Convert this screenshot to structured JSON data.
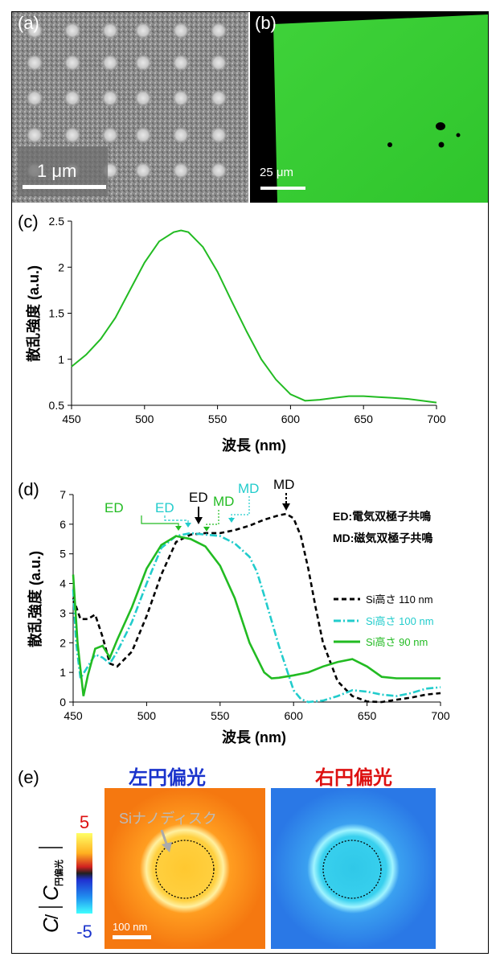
{
  "panels": {
    "a": {
      "label": "(a)",
      "scale": "1 μm"
    },
    "b": {
      "label": "(b)",
      "scale": "25 μm"
    },
    "c": {
      "label": "(c)"
    },
    "d": {
      "label": "(d)"
    },
    "e": {
      "label": "(e)",
      "left_title": "左円偏光",
      "right_title": "右円偏光",
      "disk_label": "Siナノディスク",
      "scale": "100 nm",
      "cbar_max": "5",
      "cbar_min": "-5",
      "cbar_label_c": "C",
      "cbar_label_sub": "円偏光"
    }
  },
  "chart_data": [
    {
      "type": "line",
      "panel": "c",
      "xlabel": "波長 (nm)",
      "ylabel": "散乱強度 (a.u.)",
      "xlim": [
        450,
        700
      ],
      "ylim": [
        0.5,
        2.5
      ],
      "xticks": [
        450,
        500,
        550,
        600,
        650,
        700
      ],
      "yticks": [
        0.5,
        1,
        1.5,
        2,
        2.5
      ],
      "ytick_labels": [
        "0.5",
        "1",
        "1.5",
        "2",
        "2.5"
      ],
      "series": [
        {
          "color": "#22bb22",
          "x": [
            450,
            460,
            470,
            480,
            490,
            500,
            510,
            520,
            525,
            530,
            540,
            550,
            560,
            570,
            580,
            590,
            600,
            610,
            620,
            630,
            640,
            650,
            660,
            670,
            680,
            690,
            700
          ],
          "y": [
            0.92,
            1.05,
            1.22,
            1.45,
            1.75,
            2.05,
            2.28,
            2.38,
            2.4,
            2.38,
            2.22,
            1.95,
            1.62,
            1.3,
            1.0,
            0.78,
            0.62,
            0.55,
            0.56,
            0.58,
            0.6,
            0.6,
            0.59,
            0.58,
            0.57,
            0.55,
            0.53
          ]
        }
      ]
    },
    {
      "type": "line",
      "panel": "d",
      "xlabel": "波長 (nm)",
      "ylabel": "散乱強度 (a.u.)",
      "xlim": [
        450,
        700
      ],
      "ylim": [
        0,
        7
      ],
      "xticks": [
        450,
        500,
        550,
        600,
        650,
        700
      ],
      "yticks": [
        0,
        1,
        2,
        3,
        4,
        5,
        6,
        7
      ],
      "legend_position": "right",
      "annotations_text": [
        "ED:電気双極子共鳴",
        "MD:磁気双極子共鳴"
      ],
      "series": [
        {
          "name": "Si高さ 110 nm",
          "color": "#000000",
          "dash": "6,4",
          "x": [
            450,
            455,
            460,
            465,
            470,
            475,
            480,
            490,
            500,
            510,
            520,
            530,
            540,
            550,
            560,
            570,
            580,
            590,
            595,
            600,
            605,
            610,
            615,
            620,
            630,
            640,
            650,
            660,
            670,
            680,
            690,
            700
          ],
          "y": [
            3.5,
            2.8,
            2.8,
            2.95,
            2.2,
            1.3,
            1.2,
            1.7,
            2.9,
            4.3,
            5.4,
            5.65,
            5.7,
            5.7,
            5.8,
            5.95,
            6.15,
            6.3,
            6.35,
            6.2,
            5.6,
            4.5,
            3.2,
            2.0,
            0.7,
            0.2,
            0.02,
            0.0,
            0.08,
            0.15,
            0.25,
            0.3
          ]
        },
        {
          "name": "Si高さ 100 nm",
          "color": "#22cccc",
          "dash": "9,3,2,3",
          "x": [
            450,
            452,
            455,
            460,
            465,
            470,
            475,
            480,
            490,
            500,
            510,
            520,
            530,
            540,
            550,
            560,
            570,
            575,
            580,
            590,
            600,
            605,
            610,
            620,
            630,
            640,
            650,
            660,
            670,
            680,
            690,
            700
          ],
          "y": [
            3.8,
            2.0,
            0.8,
            1.2,
            1.6,
            1.5,
            1.3,
            1.7,
            2.7,
            4.0,
            5.2,
            5.6,
            5.7,
            5.65,
            5.6,
            5.35,
            4.9,
            4.4,
            3.6,
            1.9,
            0.4,
            0.1,
            0.0,
            0.05,
            0.2,
            0.4,
            0.35,
            0.25,
            0.2,
            0.3,
            0.45,
            0.5
          ]
        },
        {
          "name": "Si高さ  90 nm",
          "color": "#22bb22",
          "dash": "",
          "x": [
            450,
            453,
            457,
            460,
            465,
            470,
            475,
            480,
            490,
            500,
            510,
            520,
            530,
            540,
            550,
            560,
            570,
            580,
            585,
            590,
            600,
            610,
            620,
            630,
            640,
            650,
            660,
            670,
            680,
            690,
            700
          ],
          "y": [
            4.3,
            2.0,
            0.2,
            0.9,
            1.8,
            1.9,
            1.5,
            2.1,
            3.2,
            4.5,
            5.3,
            5.6,
            5.5,
            5.25,
            4.6,
            3.5,
            2.0,
            1.0,
            0.8,
            0.82,
            0.9,
            1.0,
            1.2,
            1.35,
            1.45,
            1.2,
            0.85,
            0.8,
            0.8,
            0.8,
            0.8
          ]
        }
      ],
      "markers": [
        {
          "text": "ED",
          "color": "#22bb22"
        },
        {
          "text": "ED",
          "color": "#22cccc"
        },
        {
          "text": "ED",
          "color": "#000000"
        },
        {
          "text": "MD",
          "color": "#22bb22"
        },
        {
          "text": "MD",
          "color": "#22cccc"
        },
        {
          "text": "MD",
          "color": "#000000"
        }
      ]
    }
  ]
}
